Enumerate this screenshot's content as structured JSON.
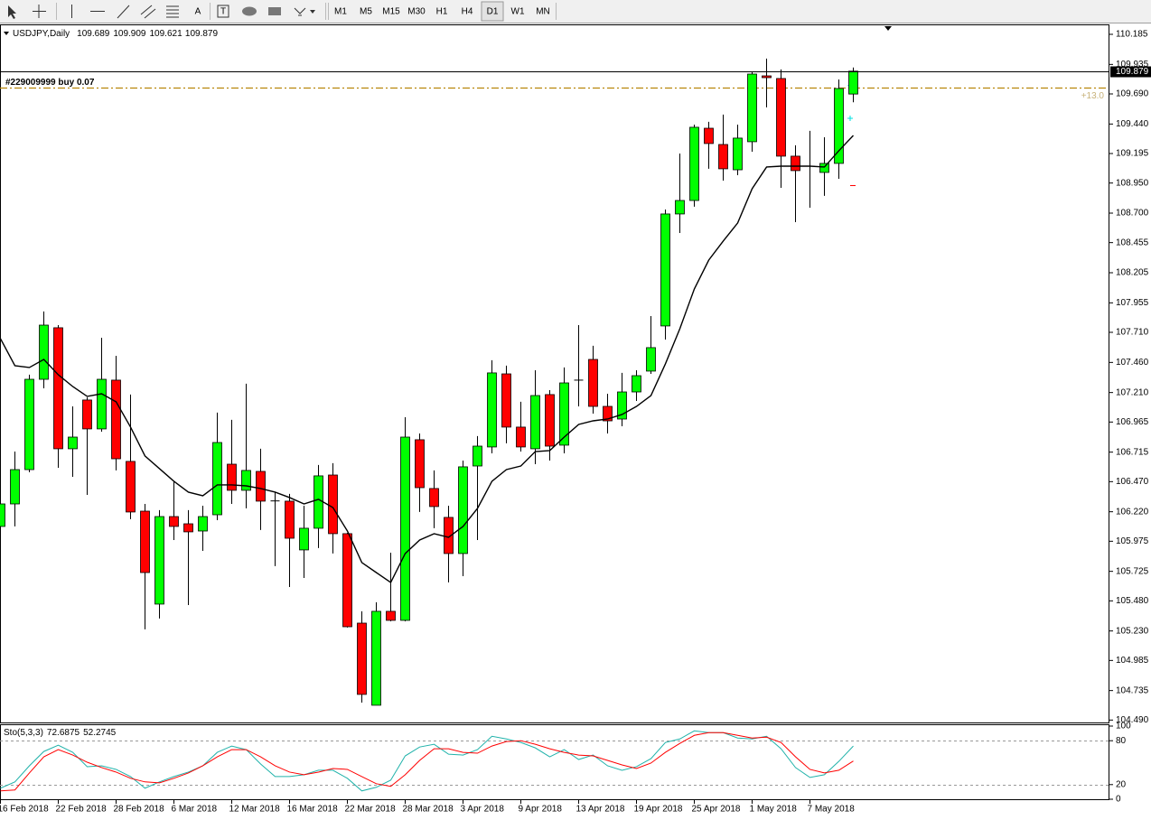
{
  "toolbar": {
    "text_tools": [
      "A",
      "T"
    ],
    "timeframes": [
      "M1",
      "M5",
      "M15",
      "M30",
      "H1",
      "H4",
      "D1",
      "W1",
      "MN"
    ],
    "active": "D1"
  },
  "chart_data": [
    {
      "type": "candlestick",
      "title": "USDJPY,Daily",
      "up_color": "#00ff00",
      "down_color": "#ff0000",
      "categories": [
        "16 Feb 2018",
        null,
        null,
        null,
        "22 Feb 2018",
        null,
        null,
        null,
        "28 Feb 2018",
        null,
        null,
        null,
        "6 Mar 2018",
        null,
        null,
        null,
        "12 Mar 2018",
        null,
        null,
        null,
        "16 Mar 2018",
        null,
        null,
        null,
        "22 Mar 2018",
        null,
        null,
        null,
        "28 Mar 2018",
        null,
        null,
        null,
        "3 Apr 2018",
        null,
        null,
        null,
        "9 Apr 2018",
        null,
        null,
        null,
        "13 Apr 2018",
        null,
        null,
        null,
        "19 Apr 2018",
        null,
        null,
        null,
        "25 Apr 2018",
        null,
        null,
        null,
        "1 May 2018",
        null,
        null,
        null,
        "7 May 2018",
        null,
        null,
        null
      ],
      "open": [
        106.098,
        106.285,
        106.57,
        107.32,
        107.748,
        106.743,
        107.148,
        106.908,
        107.313,
        106.638,
        106.225,
        105.453,
        106.18,
        106.12,
        106.06,
        106.195,
        106.615,
        106.398,
        106.555,
        106.31,
        106.308,
        105.903,
        106.083,
        106.525,
        106.038,
        105.295,
        104.613,
        105.393,
        105.318,
        106.818,
        106.413,
        106.173,
        105.873,
        106.6,
        106.758,
        107.365,
        106.923,
        106.743,
        107.193,
        106.773,
        107.313,
        107.485,
        107.095,
        106.99,
        107.215,
        107.388,
        107.763,
        108.693,
        108.805,
        109.405,
        109.27,
        109.06,
        109.293,
        109.84,
        109.818,
        109.173,
        109.09,
        109.038,
        109.113,
        109.689
      ],
      "high": [
        106.383,
        106.72,
        107.358,
        107.883,
        107.77,
        107.095,
        107.17,
        107.665,
        107.515,
        107.193,
        106.285,
        106.233,
        106.473,
        106.233,
        106.27,
        107.043,
        106.983,
        107.283,
        106.743,
        106.383,
        106.368,
        106.27,
        106.608,
        106.623,
        106.045,
        105.393,
        105.468,
        105.88,
        107.005,
        106.87,
        106.563,
        106.27,
        106.645,
        106.848,
        107.478,
        107.433,
        107.133,
        107.395,
        107.23,
        107.418,
        107.77,
        107.598,
        107.2,
        107.373,
        107.395,
        107.845,
        108.73,
        109.195,
        109.435,
        109.458,
        109.518,
        109.435,
        109.87,
        109.983,
        109.893,
        109.263,
        109.383,
        109.33,
        109.81,
        109.909
      ],
      "low": [
        105.543,
        106.098,
        106.548,
        107.245,
        106.585,
        106.51,
        106.36,
        106.885,
        106.563,
        106.158,
        105.243,
        105.333,
        105.985,
        105.445,
        105.895,
        106.15,
        106.285,
        106.248,
        106.068,
        105.768,
        105.595,
        105.67,
        105.918,
        105.873,
        105.258,
        104.635,
        104.613,
        105.31,
        105.31,
        106.218,
        106.083,
        105.633,
        105.685,
        105.985,
        106.705,
        106.788,
        106.72,
        106.615,
        106.645,
        106.705,
        107.095,
        107.035,
        106.87,
        106.93,
        107.14,
        107.365,
        107.65,
        108.535,
        108.753,
        109.068,
        108.97,
        109.015,
        109.21,
        109.578,
        108.91,
        108.625,
        108.745,
        108.843,
        108.985,
        109.621
      ],
      "close": [
        106.285,
        106.57,
        107.32,
        107.77,
        106.743,
        106.84,
        106.908,
        107.32,
        106.66,
        106.218,
        105.715,
        106.18,
        106.098,
        106.053,
        106.18,
        106.795,
        106.398,
        106.563,
        106.308,
        106.31,
        106.0,
        106.083,
        106.518,
        106.038,
        105.265,
        104.703,
        105.393,
        105.318,
        106.84,
        106.42,
        106.263,
        105.873,
        106.593,
        106.765,
        107.373,
        106.923,
        106.758,
        107.185,
        106.765,
        107.29,
        107.313,
        107.095,
        106.975,
        107.215,
        107.35,
        107.583,
        108.693,
        108.805,
        109.413,
        109.278,
        109.068,
        109.323,
        109.855,
        109.825,
        109.173,
        109.053,
        109.09,
        109.113,
        109.735,
        109.879
      ],
      "series": [
        {
          "color": "#000000",
          "values": [
            107.658,
            107.433,
            107.418,
            107.485,
            107.358,
            107.26,
            107.178,
            107.2,
            107.133,
            106.923,
            106.683,
            106.578,
            106.473,
            106.383,
            106.353,
            106.443,
            106.443,
            106.435,
            106.413,
            106.383,
            106.338,
            106.285,
            106.323,
            106.255,
            106.06,
            105.798,
            105.715,
            105.633,
            105.873,
            105.985,
            106.038,
            106.008,
            106.098,
            106.248,
            106.473,
            106.57,
            106.6,
            106.72,
            106.728,
            106.84,
            106.945,
            106.975,
            106.99,
            107.028,
            107.095,
            107.185,
            107.448,
            107.74,
            108.07,
            108.31,
            108.468,
            108.618,
            108.903,
            109.083,
            109.09,
            109.09,
            109.09,
            109.083,
            109.218,
            109.345
          ]
        }
      ],
      "order_line": {
        "label": "#229009999 buy 0.07",
        "price": 109.743,
        "color": "#b8860b",
        "profit": "+13.0"
      },
      "ylim": [
        104.47,
        110.26
      ],
      "yticks": [
        110.185,
        109.935,
        {
          "value": 109.69,
          "label": "109.690"
        },
        {
          "value": 109.44,
          "label": "109.440"
        },
        109.195,
        {
          "value": 108.95,
          "label": "108.950"
        },
        {
          "value": 108.7,
          "label": "108.700"
        },
        108.455,
        108.205,
        107.955,
        {
          "value": 107.71,
          "label": "107.710"
        },
        {
          "value": 107.46,
          "label": "107.460"
        },
        {
          "value": 107.21,
          "label": "107.210"
        },
        106.965,
        106.715,
        {
          "value": 106.47,
          "label": "106.470"
        },
        {
          "value": 106.22,
          "label": "106.220"
        },
        105.975,
        105.725,
        {
          "value": 105.48,
          "label": "105.480"
        },
        {
          "value": 105.23,
          "label": "105.230"
        },
        104.985,
        104.735,
        {
          "value": 104.49,
          "label": "104.490"
        }
      ]
    },
    {
      "type": "line",
      "title": "Sto(5,3,3)",
      "series": [
        {
          "color": "#20b2aa",
          "values": [
            15.1,
            23.7,
            45.7,
            65.3,
            73.9,
            64.1,
            44.5,
            45.7,
            40.8,
            31.0,
            15.1,
            23.7,
            31.0,
            37.1,
            45.7,
            64.1,
            72.7,
            67.8,
            48.2,
            31.0,
            31.0,
            33.5,
            39.6,
            39.6,
            28.6,
            11.4,
            16.3,
            26.1,
            59.2,
            71.4,
            75.1,
            61.6,
            60.4,
            67.8,
            86.1,
            82.4,
            77.6,
            70.2,
            58.0,
            67.8,
            54.3,
            60.4,
            45.7,
            39.6,
            44.5,
            55.5,
            77.6,
            82.4,
            93.5,
            91.0,
            91.0,
            83.7,
            82.4,
            86.1,
            69.0,
            43.3,
            29.8,
            33.5,
            51.8,
            72.6875
          ]
        },
        {
          "color": "#ff0000",
          "values": [
            11.4,
            12.7,
            35.9,
            58.0,
            67.8,
            60.4,
            50.6,
            43.3,
            37.1,
            28.6,
            23.7,
            22.4,
            28.6,
            35.9,
            45.7,
            58.0,
            67.8,
            67.8,
            58.0,
            45.7,
            37.1,
            33.5,
            37.1,
            42.0,
            40.8,
            31.0,
            21.2,
            17.6,
            33.5,
            53.1,
            69.0,
            69.0,
            64.1,
            62.9,
            72.7,
            78.8,
            80.0,
            75.1,
            69.0,
            64.1,
            60.4,
            59.2,
            53.1,
            46.9,
            42.0,
            49.4,
            64.1,
            76.3,
            87.3,
            91.0,
            91.0,
            87.3,
            83.7,
            84.9,
            77.6,
            58.0,
            40.8,
            35.9,
            39.6,
            52.2745
          ]
        }
      ],
      "levels": [
        80,
        20
      ],
      "ylim": [
        0,
        100
      ],
      "yticks": [
        100,
        80,
        20,
        0
      ]
    }
  ]
}
